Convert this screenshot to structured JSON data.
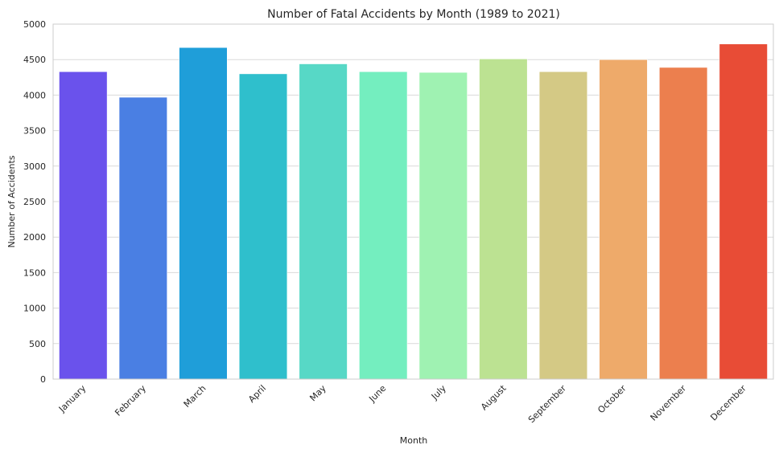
{
  "chart_data": {
    "type": "bar",
    "title": "Number of Fatal Accidents by Month (1989 to 2021)",
    "xlabel": "Month",
    "ylabel": "Number of Accidents",
    "categories": [
      "January",
      "February",
      "March",
      "April",
      "May",
      "June",
      "July",
      "August",
      "September",
      "October",
      "November",
      "December"
    ],
    "values": [
      4330,
      3970,
      4670,
      4300,
      4440,
      4330,
      4320,
      4510,
      4330,
      4500,
      4390,
      4720
    ],
    "colors": [
      "#6a52ec",
      "#4a7fe3",
      "#1f9ed9",
      "#2fbfcc",
      "#57d8c6",
      "#74eebf",
      "#9ff2b2",
      "#bce292",
      "#d4c985",
      "#eeaa6a",
      "#ec7f4e",
      "#e84c36"
    ],
    "ylim": [
      0,
      5000
    ],
    "yticks": [
      0,
      500,
      1000,
      1500,
      2000,
      2500,
      3000,
      3500,
      4000,
      4500,
      5000
    ],
    "grid": "horizontal"
  }
}
